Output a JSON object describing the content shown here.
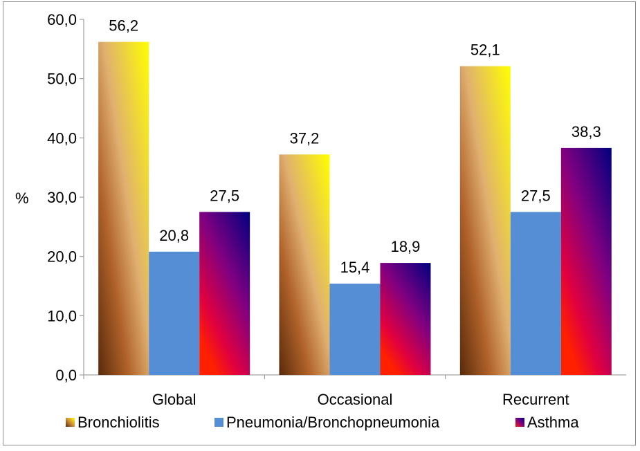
{
  "chart_data": {
    "type": "bar",
    "categories": [
      "Global",
      "Occasional",
      "Recurrent"
    ],
    "series": [
      {
        "name": "Bronchiolitis",
        "values": [
          56.2,
          37.2,
          52.1
        ],
        "labels": [
          "56,2",
          "37,2",
          "52,1"
        ]
      },
      {
        "name": "Pneumonia/Bronchopneumonia",
        "values": [
          20.8,
          15.4,
          27.5
        ],
        "labels": [
          "20,8",
          "15,4",
          "27,5"
        ]
      },
      {
        "name": "Asthma",
        "values": [
          27.5,
          18.9,
          38.3
        ],
        "labels": [
          "27,5",
          "18,9",
          "38,3"
        ]
      }
    ],
    "ylabel": "%",
    "ylim": [
      0,
      60
    ],
    "yticks": [
      "0,0",
      "10,0",
      "20,0",
      "30,0",
      "40,0",
      "50,0",
      "60,0"
    ],
    "grid": false,
    "legend_position": "bottom"
  }
}
